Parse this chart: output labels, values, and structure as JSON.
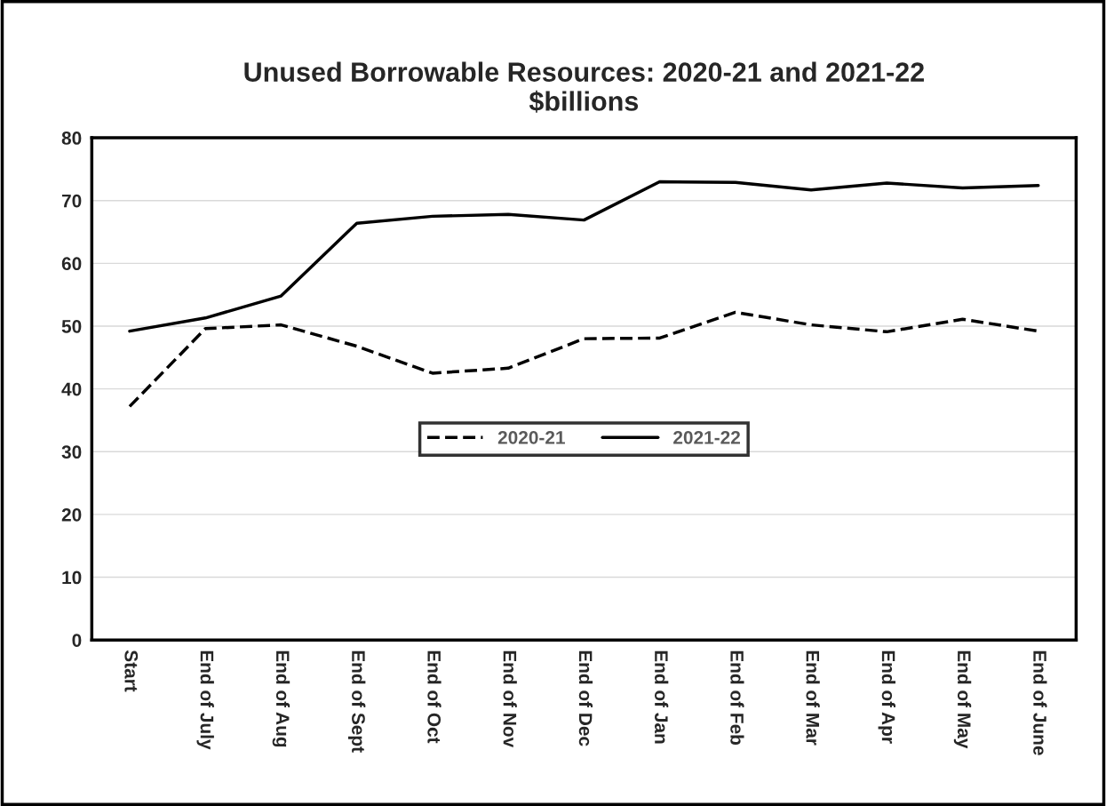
{
  "chart_data": {
    "type": "line",
    "title": "Unused Borrowable Resources: 2020-21 and 2021-22\n$billions",
    "categories": [
      "Start",
      "End of July",
      "End of Aug",
      "End of Sept",
      "End of Oct",
      "End of Nov",
      "End of Dec",
      "End of Jan",
      "End of Feb",
      "End of Mar",
      "End of Apr",
      "End of May",
      "End of June"
    ],
    "series": [
      {
        "name": "2020-21",
        "color": "#000000",
        "line_style": "dashed",
        "values": [
          37.2,
          49.6,
          50.2,
          46.8,
          42.5,
          43.3,
          48.0,
          48.1,
          52.2,
          50.2,
          49.1,
          51.1,
          49.2
        ]
      },
      {
        "name": "2021-22",
        "color": "#000000",
        "line_style": "solid",
        "values": [
          49.2,
          51.3,
          54.8,
          66.4,
          67.5,
          67.8,
          66.9,
          73.0,
          72.9,
          71.7,
          72.8,
          72.0,
          72.4
        ]
      }
    ],
    "ylim": [
      0,
      80
    ],
    "yticks": [
      0,
      10,
      20,
      30,
      40,
      50,
      60,
      70,
      80
    ],
    "grid": "y",
    "legend": "center",
    "marker": "none"
  }
}
